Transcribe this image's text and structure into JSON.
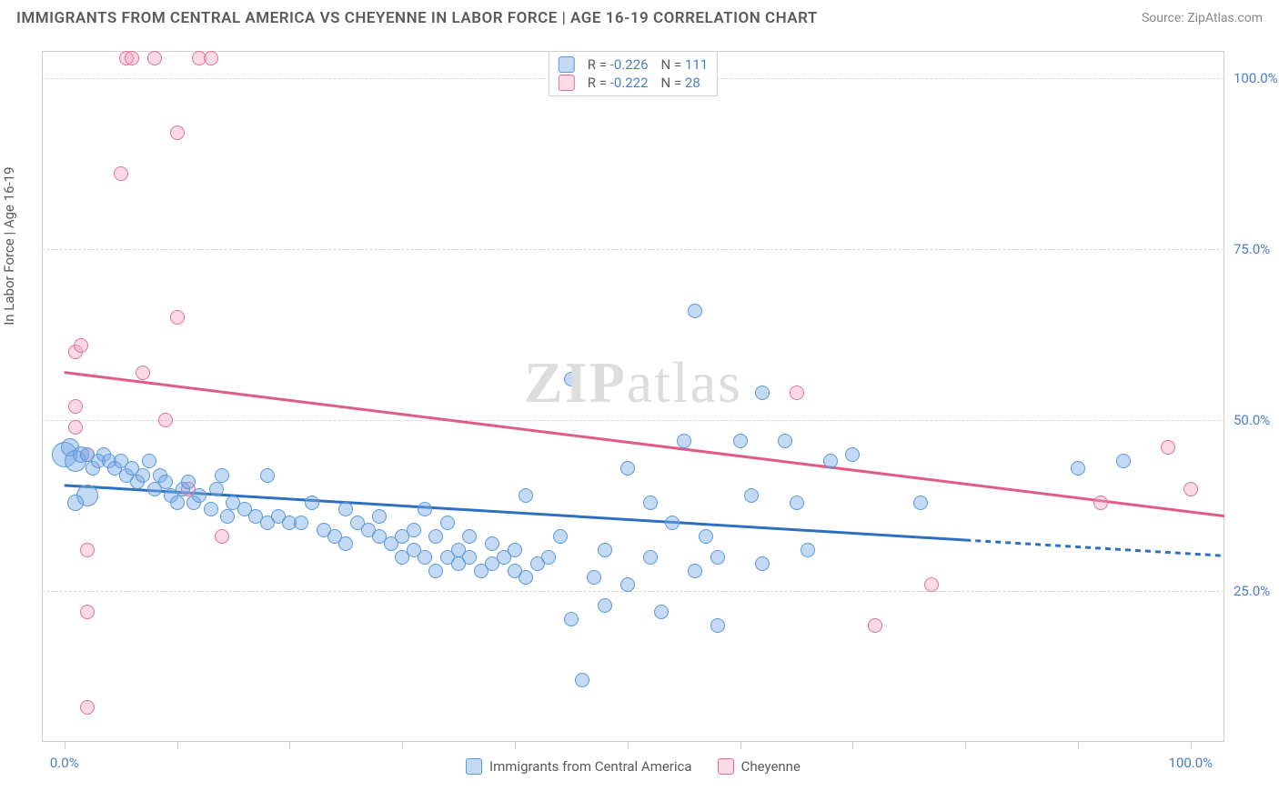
{
  "header": {
    "title": "IMMIGRANTS FROM CENTRAL AMERICA VS CHEYENNE IN LABOR FORCE | AGE 16-19 CORRELATION CHART",
    "source_prefix": "Source: ",
    "source_name": "ZipAtlas.com"
  },
  "watermark": {
    "zip": "ZIP",
    "atlas": "atlas"
  },
  "chart": {
    "type": "scatter",
    "y_axis_label": "In Labor Force | Age 16-19",
    "background_color": "#ffffff",
    "grid_color": "#d5d5d5",
    "border_color": "#cfcfcf",
    "axis_label_color": "#5a5a5a",
    "tick_label_color": "#4a7ec9",
    "xlim": [
      -2,
      103
    ],
    "ylim": [
      3,
      104
    ],
    "xticks": [
      0,
      10,
      20,
      30,
      40,
      50,
      60,
      70,
      80,
      90,
      100
    ],
    "xtick_labels": {
      "0": "0.0%",
      "100": "100.0%"
    },
    "yticks": [
      25,
      50,
      75,
      100
    ],
    "ytick_labels": {
      "25": "25.0%",
      "50": "50.0%",
      "75": "75.0%",
      "100": "100.0%"
    },
    "series": [
      {
        "key": "immigrants",
        "label": "Immigrants from Central America",
        "fill_color": "rgba(122,171,230,0.45)",
        "stroke_color": "#5a99d8",
        "marker_radius_base": 8,
        "r_value": "-0.226",
        "n_value": "111",
        "trend": {
          "color": "#2f6fbf",
          "x1": 0,
          "y1": 40.5,
          "x2": 80,
          "y2": 32.5,
          "dash_x1": 80,
          "dash_y1": 32.5,
          "dash_x2": 103,
          "dash_y2": 30.2
        },
        "points": [
          [
            0,
            45,
            14
          ],
          [
            0.5,
            46,
            10
          ],
          [
            1,
            44,
            12
          ],
          [
            1.5,
            45,
            9
          ],
          [
            2,
            45,
            8
          ],
          [
            2.5,
            43,
            8
          ],
          [
            2,
            39,
            12
          ],
          [
            1,
            38,
            9
          ],
          [
            3,
            44,
            8
          ],
          [
            3.5,
            45,
            8
          ],
          [
            4,
            44,
            8
          ],
          [
            4.5,
            43,
            8
          ],
          [
            5,
            44,
            8
          ],
          [
            5.5,
            42,
            8
          ],
          [
            6,
            43,
            8
          ],
          [
            6.5,
            41,
            8
          ],
          [
            7,
            42,
            8
          ],
          [
            7.5,
            44,
            8
          ],
          [
            8,
            40,
            8
          ],
          [
            8.5,
            42,
            8
          ],
          [
            9,
            41,
            8
          ],
          [
            9.5,
            39,
            8
          ],
          [
            10,
            38,
            8
          ],
          [
            10.5,
            40,
            8
          ],
          [
            11,
            41,
            8
          ],
          [
            11.5,
            38,
            8
          ],
          [
            12,
            39,
            8
          ],
          [
            13,
            37,
            8
          ],
          [
            13.5,
            40,
            8
          ],
          [
            14,
            42,
            8
          ],
          [
            14.5,
            36,
            8
          ],
          [
            15,
            38,
            8
          ],
          [
            16,
            37,
            8
          ],
          [
            17,
            36,
            8
          ],
          [
            18,
            35,
            8
          ],
          [
            18,
            42,
            8
          ],
          [
            19,
            36,
            8
          ],
          [
            20,
            35,
            8
          ],
          [
            21,
            35,
            8
          ],
          [
            22,
            38,
            8
          ],
          [
            23,
            34,
            8
          ],
          [
            24,
            33,
            8
          ],
          [
            25,
            37,
            8
          ],
          [
            25,
            32,
            8
          ],
          [
            26,
            35,
            8
          ],
          [
            27,
            34,
            8
          ],
          [
            28,
            33,
            8
          ],
          [
            28,
            36,
            8
          ],
          [
            29,
            32,
            8
          ],
          [
            30,
            33,
            8
          ],
          [
            30,
            30,
            8
          ],
          [
            31,
            34,
            8
          ],
          [
            31,
            31,
            8
          ],
          [
            32,
            30,
            8
          ],
          [
            32,
            37,
            8
          ],
          [
            33,
            33,
            8
          ],
          [
            33,
            28,
            8
          ],
          [
            34,
            30,
            8
          ],
          [
            34,
            35,
            8
          ],
          [
            35,
            31,
            8
          ],
          [
            35,
            29,
            8
          ],
          [
            36,
            30,
            8
          ],
          [
            36,
            33,
            8
          ],
          [
            37,
            28,
            8
          ],
          [
            38,
            32,
            8
          ],
          [
            38,
            29,
            8
          ],
          [
            39,
            30,
            8
          ],
          [
            40,
            31,
            8
          ],
          [
            40,
            28,
            8
          ],
          [
            41,
            39,
            8
          ],
          [
            41,
            27,
            8
          ],
          [
            42,
            29,
            8
          ],
          [
            43,
            30,
            8
          ],
          [
            44,
            33,
            8
          ],
          [
            45,
            21,
            8
          ],
          [
            45,
            56,
            8
          ],
          [
            46,
            12,
            8
          ],
          [
            47,
            27,
            8
          ],
          [
            48,
            31,
            8
          ],
          [
            48,
            23,
            8
          ],
          [
            50,
            43,
            8
          ],
          [
            50,
            26,
            8
          ],
          [
            52,
            30,
            8
          ],
          [
            52,
            38,
            8
          ],
          [
            53,
            22,
            8
          ],
          [
            54,
            35,
            8
          ],
          [
            55,
            47,
            8
          ],
          [
            56,
            28,
            8
          ],
          [
            56,
            66,
            8
          ],
          [
            57,
            33,
            8
          ],
          [
            58,
            30,
            8
          ],
          [
            58,
            20,
            8
          ],
          [
            60,
            47,
            8
          ],
          [
            61,
            39,
            8
          ],
          [
            62,
            54,
            8
          ],
          [
            62,
            29,
            8
          ],
          [
            64,
            47,
            8
          ],
          [
            65,
            38,
            8
          ],
          [
            66,
            31,
            8
          ],
          [
            68,
            44,
            8
          ],
          [
            70,
            45,
            8
          ],
          [
            76,
            38,
            8
          ],
          [
            90,
            43,
            8
          ],
          [
            94,
            44,
            8
          ]
        ]
      },
      {
        "key": "cheyenne",
        "label": "Cheyenne",
        "fill_color": "rgba(245,160,190,0.40)",
        "stroke_color": "#e27099",
        "marker_radius_base": 8,
        "r_value": "-0.222",
        "n_value": "28",
        "trend": {
          "color": "#e05a8a",
          "x1": 0,
          "y1": 57,
          "x2": 103,
          "y2": 36
        },
        "points": [
          [
            1,
            52,
            8
          ],
          [
            1,
            49,
            8
          ],
          [
            1,
            60,
            8
          ],
          [
            1.5,
            61,
            8
          ],
          [
            2,
            45,
            8
          ],
          [
            2,
            31,
            8
          ],
          [
            2,
            22,
            8
          ],
          [
            2,
            8,
            8
          ],
          [
            5,
            86,
            8
          ],
          [
            5.5,
            103,
            8
          ],
          [
            6,
            103,
            8
          ],
          [
            7,
            57,
            8
          ],
          [
            8,
            103,
            8
          ],
          [
            9,
            50,
            8
          ],
          [
            10,
            65,
            8
          ],
          [
            10,
            92,
            8
          ],
          [
            11,
            40,
            8
          ],
          [
            12,
            103,
            8
          ],
          [
            13,
            103,
            8
          ],
          [
            14,
            33,
            8
          ],
          [
            65,
            54,
            8
          ],
          [
            72,
            20,
            8
          ],
          [
            77,
            26,
            8
          ],
          [
            92,
            38,
            8
          ],
          [
            98,
            46,
            8
          ],
          [
            100,
            40,
            8
          ]
        ]
      }
    ],
    "legend_top": {
      "r_label": "R =",
      "n_label": "N ="
    }
  }
}
